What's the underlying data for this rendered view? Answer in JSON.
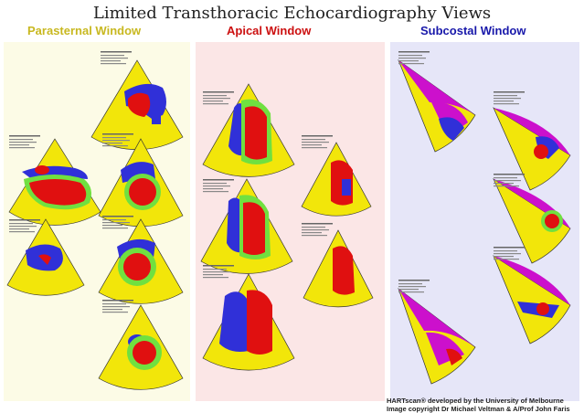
{
  "header": {
    "title": "Limited Transthoracic Echocardiography Views"
  },
  "windows": [
    {
      "name": "Parasternal Window",
      "color": "#c8b820"
    },
    {
      "name": "Apical Window",
      "color": "#cc1010"
    },
    {
      "name": "Subcostal Window",
      "color": "#1818aa"
    }
  ],
  "colors": {
    "sector": "#f2e60a",
    "left_heart": "#e01010",
    "right_heart": "#3030d8",
    "myocardium": "#70e040",
    "liver": "#cc10cc"
  },
  "credits": {
    "line1": "HARTscan® developed by the University of Melbourne",
    "line2": "Image copyright Dr Michael Veltman & A/Prof John Faris"
  }
}
